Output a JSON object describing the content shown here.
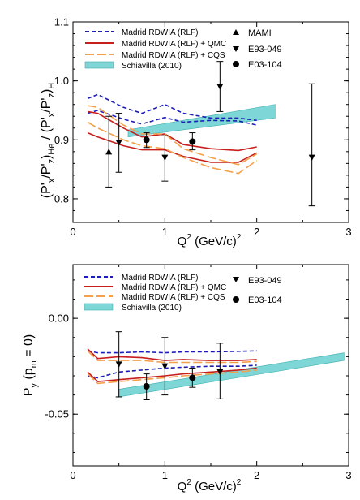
{
  "colors": {
    "rlf": "#1c1cb8",
    "qmc": "#c81e1e",
    "cqs": "#f4a04a",
    "band_fill": "#7fd6d6",
    "band_stroke": "#3fb0b0"
  },
  "chart_data": [
    {
      "type": "line",
      "title": "",
      "xlabel": "Q² (GeV/c)²",
      "xlabel_main": "Q",
      "xlabel_sup": "2",
      "xlabel_unit": " (GeV/c)",
      "xlabel_unit_sup": "2",
      "ylabel": "(P'x/P'z)He / (P'x/P'z)H",
      "xlim": [
        0,
        3
      ],
      "ylim": [
        0.76,
        1.1
      ],
      "xticks": [
        "0",
        "1",
        "2",
        "3"
      ],
      "yticks": [
        "0.8",
        "0.9",
        "1.0",
        "1.1"
      ],
      "ytick_values": [
        0.8,
        0.9,
        1.0,
        1.1
      ],
      "legend": {
        "position": "top-left",
        "entries": [
          {
            "label": "Madrid RDWIA (RLF)",
            "style": "rlf"
          },
          {
            "label": "Madrid RDWIA (RLF) + QMC",
            "style": "qmc"
          },
          {
            "label": "Madrid RDWIA (RLF) + CQS",
            "style": "cqs"
          },
          {
            "label": "Schiavilla (2010)",
            "style": "band"
          }
        ]
      },
      "marker_legend": {
        "position": "top-right",
        "entries": [
          {
            "label": "MAMI",
            "marker": "triangle-up"
          },
          {
            "label": "E93-049",
            "marker": "triangle-down"
          },
          {
            "label": "E03-104",
            "marker": "circle"
          }
        ]
      },
      "curves": [
        {
          "style": "rlf",
          "x": [
            0.16,
            0.27,
            0.55,
            0.75,
            1.0,
            1.2,
            1.5,
            1.8,
            2.0
          ],
          "y": [
            0.97,
            0.977,
            0.955,
            0.945,
            0.96,
            0.945,
            0.937,
            0.937,
            0.933
          ]
        },
        {
          "style": "rlf",
          "x": [
            0.16,
            0.27,
            0.55,
            0.75,
            1.0,
            1.2,
            1.5,
            1.8,
            2.0
          ],
          "y": [
            0.945,
            0.95,
            0.935,
            0.927,
            0.938,
            0.93,
            0.933,
            0.932,
            0.925
          ]
        },
        {
          "style": "qmc",
          "x": [
            0.16,
            0.27,
            0.55,
            0.75,
            1.0,
            1.2,
            1.5,
            1.8,
            2.0
          ],
          "y": [
            0.948,
            0.945,
            0.92,
            0.905,
            0.91,
            0.892,
            0.885,
            0.882,
            0.888
          ]
        },
        {
          "style": "qmc",
          "x": [
            0.16,
            0.27,
            0.55,
            0.75,
            1.0,
            1.2,
            1.5,
            1.8,
            2.0
          ],
          "y": [
            0.912,
            0.905,
            0.89,
            0.883,
            0.883,
            0.872,
            0.862,
            0.862,
            0.878
          ]
        },
        {
          "style": "cqs",
          "x": [
            0.16,
            0.27,
            0.55,
            0.75,
            1.0,
            1.2,
            1.5,
            1.8,
            2.0
          ],
          "y": [
            0.958,
            0.955,
            0.925,
            0.91,
            0.91,
            0.885,
            0.87,
            0.858,
            0.876
          ]
        },
        {
          "style": "cqs",
          "x": [
            0.16,
            0.27,
            0.55,
            0.75,
            1.0,
            1.2,
            1.5,
            1.8,
            2.0
          ],
          "y": [
            0.93,
            0.92,
            0.9,
            0.89,
            0.885,
            0.87,
            0.853,
            0.843,
            0.865
          ]
        }
      ],
      "band": {
        "x": [
          0.6,
          2.2
        ],
        "lower": [
          0.905,
          0.937
        ],
        "upper": [
          0.917,
          0.96
        ]
      },
      "points": [
        {
          "series": "MAMI",
          "marker": "triangle-up",
          "x": 0.39,
          "y": 0.88,
          "ylow": 0.82,
          "yhigh": 0.94
        },
        {
          "series": "E93-049",
          "marker": "triangle-down",
          "x": 0.5,
          "y": 0.895,
          "ylow": 0.845,
          "yhigh": 0.945
        },
        {
          "series": "E93-049",
          "marker": "triangle-down",
          "x": 1.0,
          "y": 0.87,
          "ylow": 0.83,
          "yhigh": 0.907
        },
        {
          "series": "E93-049",
          "marker": "triangle-down",
          "x": 1.6,
          "y": 0.99,
          "ylow": 0.948,
          "yhigh": 1.033
        },
        {
          "series": "E93-049",
          "marker": "triangle-down",
          "x": 2.6,
          "y": 0.87,
          "ylow": 0.788,
          "yhigh": 0.995
        },
        {
          "series": "E03-104",
          "marker": "circle",
          "x": 0.8,
          "y": 0.9,
          "ylow": 0.887,
          "yhigh": 0.912
        },
        {
          "series": "E03-104",
          "marker": "circle",
          "x": 1.3,
          "y": 0.897,
          "ylow": 0.883,
          "yhigh": 0.912
        }
      ]
    },
    {
      "type": "line",
      "title": "",
      "xlabel": "Q² (GeV/c)²",
      "xlabel_main": "Q",
      "xlabel_sup": "2",
      "xlabel_unit": " (GeV/c)",
      "xlabel_unit_sup": "2",
      "ylabel": "Py (pm = 0)",
      "xlim": [
        0,
        3
      ],
      "ylim": [
        -0.077,
        0.028
      ],
      "xticks": [
        "0",
        "1",
        "2",
        "3"
      ],
      "yticks": [
        "0.00",
        "-0.05"
      ],
      "ytick_values": [
        0.0,
        -0.05
      ],
      "legend": {
        "position": "top-left",
        "entries": [
          {
            "label": "Madrid RDWIA (RLF)",
            "style": "rlf"
          },
          {
            "label": "Madrid RDWIA (RLF) + QMC",
            "style": "qmc"
          },
          {
            "label": "Madrid RDWIA (RLF) + CQS",
            "style": "cqs"
          },
          {
            "label": "Schiavilla (2010)",
            "style": "band"
          }
        ]
      },
      "marker_legend": {
        "position": "top-right",
        "entries": [
          {
            "label": "E93-049",
            "marker": "triangle-down"
          },
          {
            "label": "E03-104",
            "marker": "circle"
          }
        ]
      },
      "curves": [
        {
          "style": "rlf",
          "x": [
            0.16,
            0.27,
            0.5,
            0.75,
            1.0,
            1.2,
            1.5,
            1.8,
            2.0
          ],
          "y": [
            -0.017,
            -0.018,
            -0.018,
            -0.0175,
            -0.018,
            -0.0175,
            -0.0175,
            -0.0172,
            -0.017
          ]
        },
        {
          "style": "rlf",
          "x": [
            0.16,
            0.27,
            0.5,
            0.75,
            1.0,
            1.2,
            1.5,
            1.8,
            2.0
          ],
          "y": [
            -0.03,
            -0.031,
            -0.028,
            -0.027,
            -0.026,
            -0.0255,
            -0.025,
            -0.025,
            -0.0245
          ]
        },
        {
          "style": "qmc",
          "x": [
            0.16,
            0.27,
            0.5,
            0.75,
            1.0,
            1.2,
            1.5,
            1.8,
            2.0
          ],
          "y": [
            -0.016,
            -0.021,
            -0.02,
            -0.0205,
            -0.022,
            -0.0215,
            -0.022,
            -0.022,
            -0.0215
          ]
        },
        {
          "style": "qmc",
          "x": [
            0.16,
            0.27,
            0.5,
            0.75,
            1.0,
            1.2,
            1.5,
            1.8,
            2.0
          ],
          "y": [
            -0.028,
            -0.033,
            -0.032,
            -0.031,
            -0.03,
            -0.029,
            -0.028,
            -0.027,
            -0.026
          ]
        },
        {
          "style": "cqs",
          "x": [
            0.16,
            0.27,
            0.5,
            0.75,
            1.0,
            1.2,
            1.5,
            1.8,
            2.0
          ],
          "y": [
            -0.017,
            -0.022,
            -0.022,
            -0.022,
            -0.023,
            -0.023,
            -0.023,
            -0.023,
            -0.0225
          ]
        },
        {
          "style": "cqs",
          "x": [
            0.16,
            0.27,
            0.5,
            0.75,
            1.0,
            1.2,
            1.5,
            1.8,
            2.0
          ],
          "y": [
            -0.029,
            -0.034,
            -0.033,
            -0.032,
            -0.031,
            -0.03,
            -0.029,
            -0.028,
            -0.027
          ]
        }
      ],
      "band": {
        "x": [
          0.5,
          2.95
        ],
        "lower": [
          -0.041,
          -0.022
        ],
        "upper": [
          -0.037,
          -0.018
        ]
      },
      "points": [
        {
          "series": "E93-049",
          "marker": "triangle-down",
          "x": 0.5,
          "y": -0.024,
          "ylow": -0.041,
          "yhigh": -0.007
        },
        {
          "series": "E93-049",
          "marker": "triangle-down",
          "x": 1.0,
          "y": -0.025,
          "ylow": -0.04,
          "yhigh": -0.01
        },
        {
          "series": "E93-049",
          "marker": "triangle-down",
          "x": 1.6,
          "y": -0.028,
          "ylow": -0.042,
          "yhigh": -0.013
        },
        {
          "series": "E03-104",
          "marker": "circle",
          "x": 0.8,
          "y": -0.0355,
          "ylow": -0.0425,
          "yhigh": -0.029
        },
        {
          "series": "E03-104",
          "marker": "circle",
          "x": 1.3,
          "y": -0.031,
          "ylow": -0.036,
          "yhigh": -0.026
        }
      ]
    }
  ]
}
